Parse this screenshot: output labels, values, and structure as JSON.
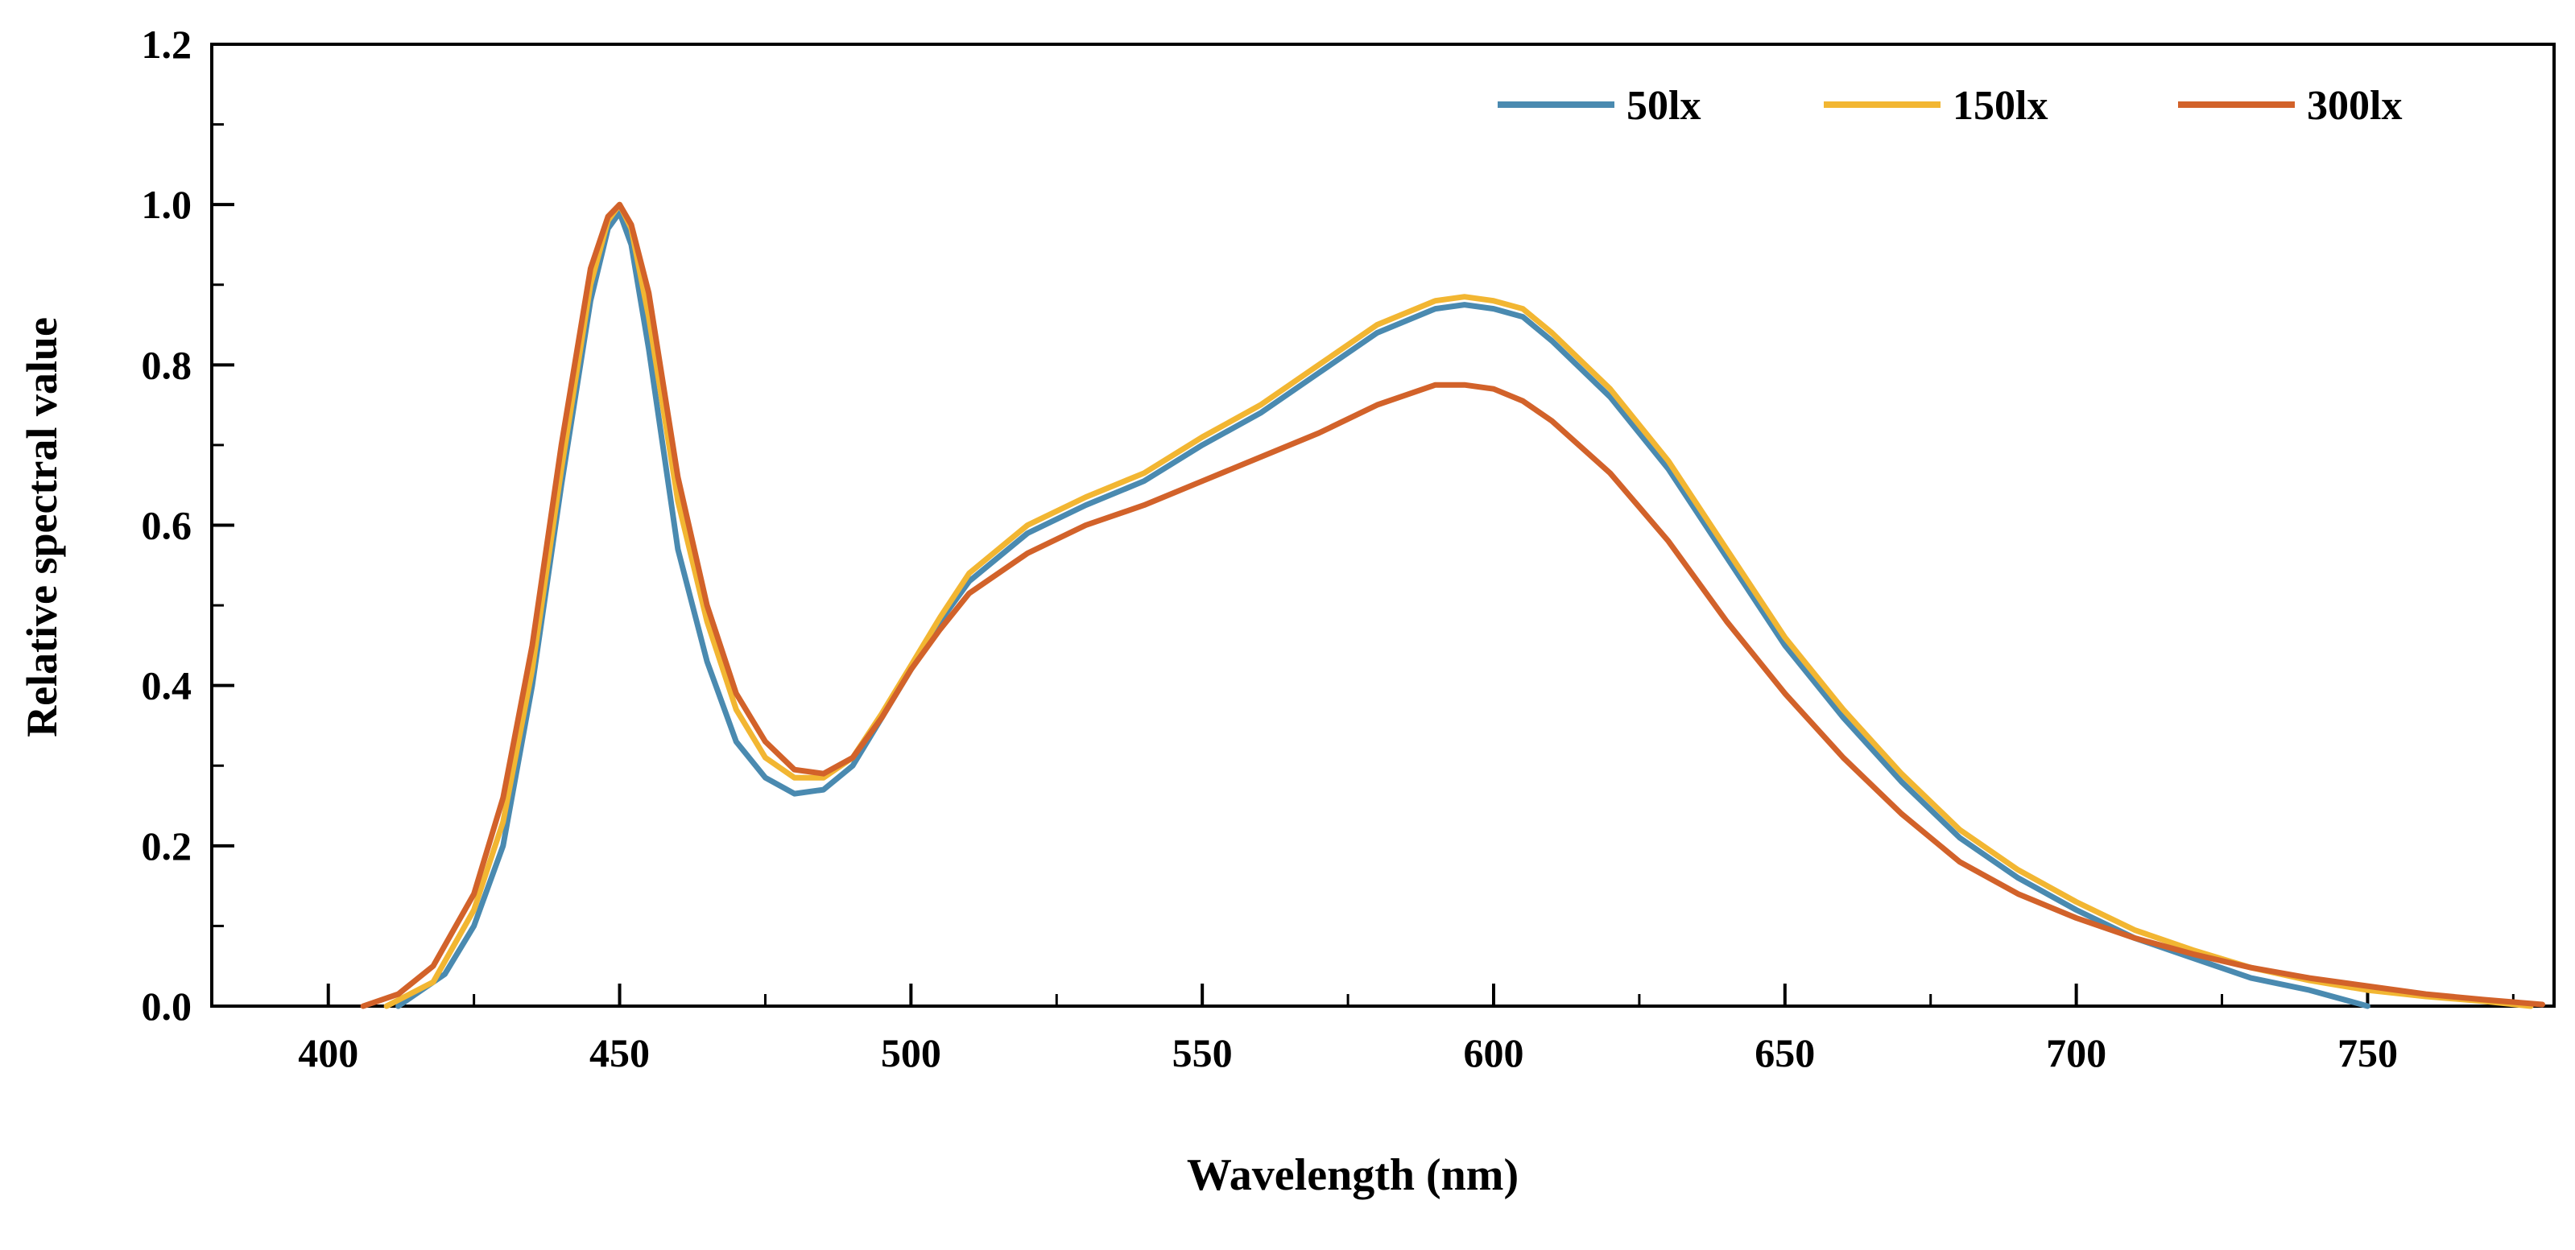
{
  "chart_data": {
    "type": "line",
    "title": "",
    "xlabel": "Wavelength (nm)",
    "ylabel": "Relative spectral value",
    "xlim": [
      380,
      782
    ],
    "ylim": [
      0,
      1.2
    ],
    "x_ticks": [
      400,
      450,
      500,
      550,
      600,
      650,
      700,
      750
    ],
    "x_tick_labels": [
      "400",
      "450",
      "500",
      "550",
      "600",
      "650",
      "700",
      "750"
    ],
    "y_ticks": [
      0.0,
      0.2,
      0.4,
      0.6,
      0.8,
      1.0,
      1.2
    ],
    "y_tick_labels": [
      "0.0",
      "0.2",
      "0.4",
      "0.6",
      "0.8",
      "1.0",
      "1.2"
    ],
    "grid": false,
    "legend_position": "top-right",
    "series": [
      {
        "name": "50lx",
        "color": "#4A8AB0",
        "x": [
          412,
          420,
          425,
          430,
          435,
          440,
          445,
          448,
          450,
          452,
          455,
          460,
          465,
          470,
          475,
          480,
          485,
          490,
          495,
          500,
          505,
          510,
          520,
          530,
          540,
          550,
          560,
          570,
          580,
          590,
          595,
          600,
          605,
          610,
          620,
          630,
          640,
          650,
          660,
          670,
          680,
          690,
          700,
          710,
          720,
          730,
          740,
          750
        ],
        "values": [
          0.0,
          0.04,
          0.1,
          0.2,
          0.4,
          0.65,
          0.88,
          0.97,
          0.99,
          0.95,
          0.82,
          0.57,
          0.43,
          0.33,
          0.285,
          0.265,
          0.27,
          0.3,
          0.36,
          0.42,
          0.48,
          0.53,
          0.59,
          0.625,
          0.655,
          0.7,
          0.74,
          0.79,
          0.84,
          0.87,
          0.875,
          0.87,
          0.86,
          0.83,
          0.76,
          0.67,
          0.56,
          0.45,
          0.36,
          0.28,
          0.21,
          0.16,
          0.12,
          0.085,
          0.06,
          0.035,
          0.02,
          0.0
        ]
      },
      {
        "name": "150lx",
        "color": "#F2B632",
        "x": [
          410,
          418,
          425,
          430,
          435,
          440,
          445,
          448,
          450,
          452,
          455,
          460,
          465,
          470,
          475,
          480,
          485,
          490,
          495,
          500,
          505,
          510,
          520,
          530,
          540,
          550,
          560,
          570,
          580,
          590,
          595,
          600,
          605,
          610,
          620,
          630,
          640,
          650,
          660,
          670,
          680,
          690,
          700,
          710,
          720,
          730,
          740,
          750,
          760,
          770,
          778
        ],
        "values": [
          0.0,
          0.03,
          0.12,
          0.23,
          0.42,
          0.67,
          0.9,
          0.98,
          1.0,
          0.97,
          0.86,
          0.63,
          0.48,
          0.37,
          0.31,
          0.285,
          0.285,
          0.31,
          0.365,
          0.425,
          0.485,
          0.54,
          0.6,
          0.635,
          0.665,
          0.71,
          0.75,
          0.8,
          0.85,
          0.88,
          0.885,
          0.88,
          0.87,
          0.84,
          0.77,
          0.68,
          0.57,
          0.46,
          0.37,
          0.29,
          0.22,
          0.17,
          0.13,
          0.095,
          0.07,
          0.048,
          0.032,
          0.02,
          0.012,
          0.006,
          0.0
        ]
      },
      {
        "name": "300lx",
        "color": "#D2622A",
        "x": [
          406,
          412,
          418,
          425,
          430,
          435,
          440,
          445,
          448,
          450,
          452,
          455,
          460,
          465,
          470,
          475,
          480,
          485,
          490,
          495,
          500,
          505,
          510,
          520,
          530,
          540,
          550,
          560,
          570,
          580,
          590,
          595,
          600,
          605,
          610,
          620,
          630,
          640,
          650,
          660,
          670,
          680,
          690,
          700,
          710,
          720,
          730,
          740,
          750,
          760,
          770,
          780
        ],
        "values": [
          0.0,
          0.015,
          0.05,
          0.14,
          0.26,
          0.45,
          0.7,
          0.92,
          0.985,
          1.0,
          0.975,
          0.89,
          0.66,
          0.5,
          0.39,
          0.33,
          0.295,
          0.29,
          0.31,
          0.36,
          0.42,
          0.47,
          0.515,
          0.565,
          0.6,
          0.625,
          0.655,
          0.685,
          0.715,
          0.75,
          0.775,
          0.775,
          0.77,
          0.755,
          0.73,
          0.665,
          0.58,
          0.48,
          0.39,
          0.31,
          0.24,
          0.18,
          0.14,
          0.11,
          0.085,
          0.065,
          0.048,
          0.035,
          0.025,
          0.015,
          0.008,
          0.002
        ]
      }
    ]
  }
}
